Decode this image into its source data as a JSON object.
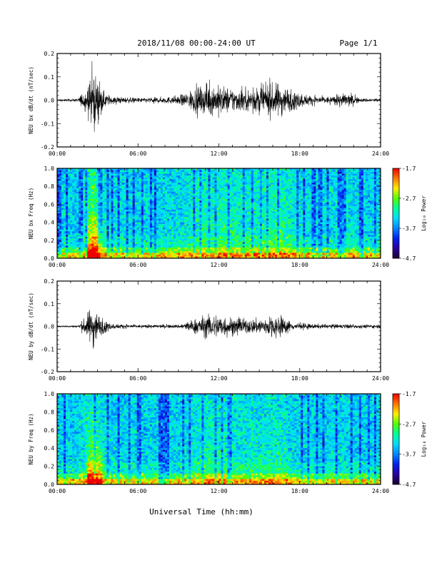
{
  "header": {
    "title": "2018/11/08  00:00-24:00 UT",
    "page": "Page 1/1"
  },
  "xaxis_title": "Universal Time (hh:mm)",
  "colors": {
    "trace": "#000000",
    "colormap": [
      "#1a0033",
      "#2a00a0",
      "#0022ee",
      "#0088ff",
      "#00ddff",
      "#00ff99",
      "#55ff00",
      "#ffee00",
      "#ff7700",
      "#ee0000"
    ]
  },
  "chart_data": [
    {
      "type": "line",
      "ylabel": "NEU bx dB/dt (nT/sec)",
      "xlim": [
        "00:00",
        "24:00"
      ],
      "ylim": [
        -0.2,
        0.2
      ],
      "yticks": [
        "0.2",
        "0.1",
        "0.0",
        "-0.1",
        "-0.2"
      ],
      "xticks": [
        "00:00",
        "06:00",
        "12:00",
        "18:00",
        "24:00"
      ],
      "series": [
        {
          "envelope_hours": [
            0,
            1.5,
            2.0,
            2.4,
            2.7,
            3.2,
            4.0,
            6.0,
            9.0,
            9.8,
            10.5,
            11.5,
            12.5,
            13.5,
            14.5,
            15.5,
            16.5,
            17.5,
            18.5,
            19.5,
            20.5,
            21.5,
            22.5,
            24.0
          ],
          "envelope_amplitude": [
            0.005,
            0.008,
            0.05,
            0.1,
            0.17,
            0.06,
            0.02,
            0.012,
            0.02,
            0.05,
            0.07,
            0.08,
            0.07,
            0.06,
            0.06,
            0.08,
            0.09,
            0.05,
            0.03,
            0.02,
            0.02,
            0.04,
            0.01,
            0.01
          ]
        }
      ]
    },
    {
      "type": "heatmap",
      "ylabel": "NEU bx Freq (Hz)",
      "xlim": [
        "00:00",
        "24:00"
      ],
      "ylim": [
        0.0,
        1.0
      ],
      "yticks": [
        "1.0",
        "0.8",
        "0.6",
        "0.4",
        "0.2",
        "0.0"
      ],
      "xticks": [
        "00:00",
        "06:00",
        "12:00",
        "18:00",
        "24:00"
      ],
      "colorbar": {
        "label": "Log₁₀ Power",
        "range": [
          -4.7,
          -1.7
        ],
        "ticks": [
          "-1.7",
          "-2.7",
          "-3.7",
          "-4.7"
        ]
      }
    },
    {
      "type": "line",
      "ylabel": "NEU by dB/dt (nT/sec)",
      "xlim": [
        "00:00",
        "24:00"
      ],
      "ylim": [
        -0.2,
        0.2
      ],
      "yticks": [
        "0.2",
        "0.1",
        "0.0",
        "-0.1",
        "-0.2"
      ],
      "xticks": [
        "00:00",
        "06:00",
        "12:00",
        "18:00",
        "24:00"
      ],
      "series": [
        {
          "envelope_hours": [
            0,
            1.5,
            2.0,
            2.4,
            2.7,
            3.2,
            4.0,
            6.0,
            9.0,
            9.8,
            10.5,
            11.5,
            12.5,
            13.5,
            14.5,
            15.5,
            16.5,
            17.5,
            18.5,
            19.5,
            20.5,
            21.5,
            22.5,
            24.0
          ],
          "envelope_amplitude": [
            0.004,
            0.006,
            0.04,
            0.09,
            0.12,
            0.05,
            0.015,
            0.008,
            0.01,
            0.03,
            0.05,
            0.07,
            0.06,
            0.04,
            0.04,
            0.05,
            0.06,
            0.02,
            0.015,
            0.012,
            0.012,
            0.012,
            0.01,
            0.01
          ]
        }
      ]
    },
    {
      "type": "heatmap",
      "ylabel": "NEU by Freq (Hz)",
      "xlim": [
        "00:00",
        "24:00"
      ],
      "ylim": [
        0.0,
        1.0
      ],
      "yticks": [
        "1.0",
        "0.8",
        "0.6",
        "0.4",
        "0.2",
        "0.0"
      ],
      "xticks": [
        "00:00",
        "06:00",
        "12:00",
        "18:00",
        "24:00"
      ],
      "colorbar": {
        "label": "Log₁₀ Power",
        "range": [
          -4.7,
          -1.7
        ],
        "ticks": [
          "-1.7",
          "-2.7",
          "-3.7",
          "-4.7"
        ]
      }
    }
  ]
}
